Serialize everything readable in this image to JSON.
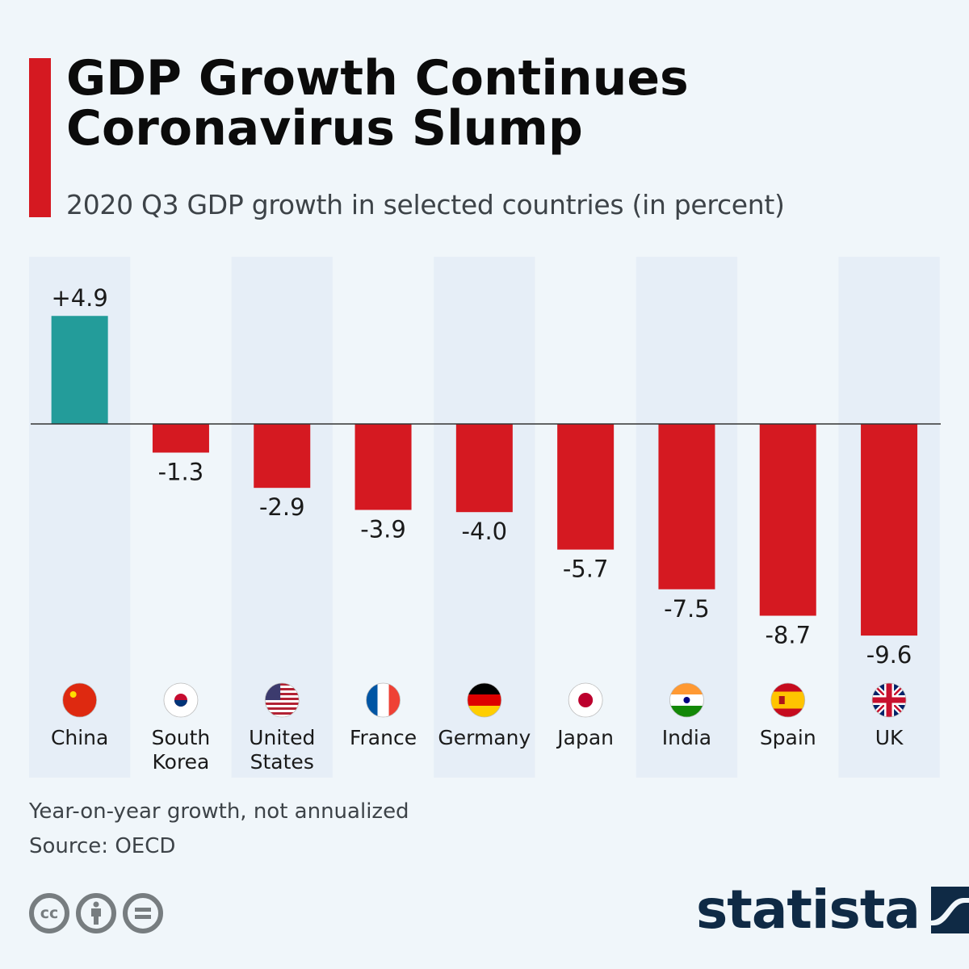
{
  "header": {
    "title_line1": "GDP Growth Continues",
    "title_line2": "Coronavirus Slump",
    "subtitle": "2020 Q3 GDP growth in selected countries (in percent)"
  },
  "colors": {
    "accent": "#d51921",
    "positive": "#239c9a",
    "negative": "#d51921",
    "band": "#e6eef7",
    "background": "#f0f6fa",
    "logo": "#0f2a45"
  },
  "chart_data": {
    "type": "bar",
    "title": "GDP Growth Continues Coronavirus Slump",
    "subtitle": "2020 Q3 GDP growth in selected countries (in percent)",
    "xlabel": "",
    "ylabel": "",
    "ylim": [
      -9.6,
      4.9
    ],
    "grid": false,
    "legend": "none",
    "categories": [
      "China",
      "South Korea",
      "United States",
      "France",
      "Germany",
      "Japan",
      "India",
      "Spain",
      "UK"
    ],
    "category_lines": [
      [
        "China"
      ],
      [
        "South",
        "Korea"
      ],
      [
        "United",
        "States"
      ],
      [
        "France"
      ],
      [
        "Germany"
      ],
      [
        "Japan"
      ],
      [
        "India"
      ],
      [
        "Spain"
      ],
      [
        "UK"
      ]
    ],
    "flags": [
      "china-flag",
      "south-korea-flag",
      "united-states-flag",
      "france-flag",
      "germany-flag",
      "japan-flag",
      "india-flag",
      "spain-flag",
      "uk-flag"
    ],
    "values": [
      4.9,
      -1.3,
      -2.9,
      -3.9,
      -4.0,
      -5.7,
      -7.5,
      -8.7,
      -9.6
    ],
    "labels": [
      "+4.9",
      "-1.3",
      "-2.9",
      "-3.9",
      "-4.0",
      "-5.7",
      "-7.5",
      "-8.7",
      "-9.6"
    ]
  },
  "footer": {
    "note": "Year-on-year growth, not annualized",
    "source": "Source: OECD",
    "license_icons": [
      "cc-icon",
      "attribution-icon",
      "no-derivatives-icon"
    ],
    "cc_label": "cc",
    "brand": "statista"
  }
}
